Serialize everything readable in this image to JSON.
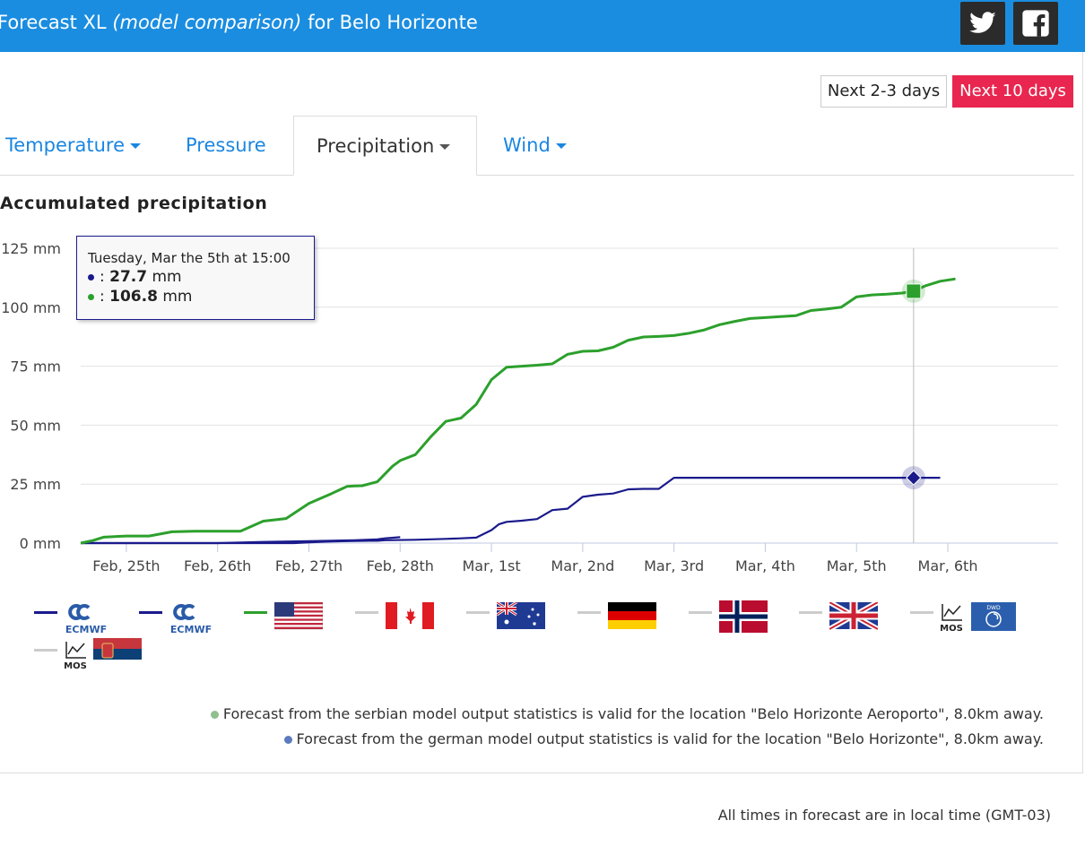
{
  "header": {
    "title_prefix": "Forecast XL",
    "title_italic": "(model comparison)",
    "title_suffix": "for Belo Horizonte",
    "twitter_icon": "twitter-icon",
    "facebook_icon": "facebook-icon"
  },
  "range_buttons": {
    "short_label": "Next 2-3 days",
    "long_label": "Next 10 days",
    "active_color": "#e8264f"
  },
  "tabs": [
    {
      "label": "Temperature",
      "has_dropdown": true,
      "active": false
    },
    {
      "label": "Pressure",
      "has_dropdown": false,
      "active": false
    },
    {
      "label": "Precipitation",
      "has_dropdown": true,
      "active": true
    },
    {
      "label": "Wind",
      "has_dropdown": true,
      "active": false
    }
  ],
  "tooltip": {
    "date": "Tuesday, Mar the 5th at 15:00",
    "rows": [
      {
        "sep": ":",
        "value": "27.7",
        "unit": "mm",
        "color": "#1a1a8c"
      },
      {
        "sep": ":",
        "value": "106.8",
        "unit": "mm",
        "color": "#2ca02c"
      }
    ]
  },
  "chart_data": {
    "type": "line",
    "title": "Accumulated precipitation",
    "ylim": [
      0,
      125
    ],
    "yticks": [
      "0 mm",
      "25 mm",
      "50 mm",
      "75 mm",
      "100 mm",
      "125 mm"
    ],
    "ytick_values": [
      0,
      25,
      50,
      75,
      100,
      125
    ],
    "x_unit": "hours since Feb 24th 12:00",
    "xlim": [
      0,
      257
    ],
    "xticks": [
      "Feb, 25th",
      "Feb, 26th",
      "Feb, 27th",
      "Feb, 28th",
      "Mar, 1st",
      "Mar, 2nd",
      "Mar, 3rd",
      "Mar, 4th",
      "Mar, 5th",
      "Mar, 6th"
    ],
    "xtick_values": [
      12,
      36,
      60,
      84,
      108,
      132,
      156,
      180,
      204,
      228
    ],
    "grid": true,
    "crosshair_x": 219,
    "series": [
      {
        "color": "#1a1a8c",
        "marker": "diamond",
        "x": [
          0,
          6,
          12,
          24,
          36,
          48,
          56,
          64,
          72,
          76,
          78,
          80,
          88,
          92,
          96,
          100,
          104,
          108,
          110,
          112,
          116,
          120,
          124,
          128,
          132,
          136,
          140,
          144,
          148,
          152,
          156,
          160,
          168,
          180,
          192,
          204,
          216,
          219,
          226
        ],
        "y": [
          0,
          0,
          0,
          0,
          0,
          0,
          0,
          0.6,
          0.9,
          1,
          1,
          1.2,
          1.4,
          1.6,
          1.8,
          2,
          2.3,
          5.5,
          8,
          9,
          9.5,
          10.2,
          14,
          14.6,
          19.6,
          20.5,
          21,
          22.8,
          23,
          23,
          27.7,
          27.7,
          27.7,
          27.7,
          27.7,
          27.7,
          27.7,
          27.7,
          27.7
        ]
      },
      {
        "color": "#1a1a8c",
        "marker": "none",
        "x": [
          0,
          12,
          24,
          36,
          48,
          60,
          66,
          72,
          78,
          80,
          84
        ],
        "y": [
          0,
          0,
          0,
          0,
          0.5,
          0.8,
          1,
          1.2,
          1.6,
          2,
          2.5
        ]
      },
      {
        "color": "#2ca02c",
        "marker": "square",
        "x": [
          0,
          3,
          6,
          12,
          18,
          24,
          30,
          36,
          42,
          48,
          54,
          60,
          66,
          70,
          72,
          74,
          78,
          82,
          84,
          88,
          92,
          96,
          100,
          104,
          108,
          112,
          116,
          120,
          124,
          128,
          132,
          136,
          140,
          144,
          148,
          152,
          156,
          160,
          164,
          168,
          172,
          176,
          180,
          184,
          188,
          192,
          196,
          200,
          204,
          208,
          212,
          216,
          219,
          222,
          226,
          230
        ],
        "y": [
          0,
          1,
          2.5,
          3,
          3,
          4.8,
          5,
          5,
          5,
          9.3,
          10.4,
          16.8,
          21,
          24,
          24.2,
          24.3,
          26,
          32.6,
          35,
          37.5,
          45,
          51.6,
          53,
          58.8,
          69.3,
          74.6,
          75,
          75.4,
          76,
          80,
          81.3,
          81.5,
          83,
          86,
          87.4,
          87.6,
          88,
          89,
          90.4,
          92.6,
          94,
          95.2,
          95.6,
          96,
          96.4,
          98.6,
          99.2,
          100,
          104.4,
          105.2,
          105.5,
          106,
          106.8,
          109,
          111,
          112
        ]
      }
    ]
  },
  "legend": [
    {
      "color": "#1a1a8c",
      "icon": "ecmwf-logo-icon",
      "logo_text": "ECMWF"
    },
    {
      "color": "#1a1a8c",
      "icon": "ecmwf-logo-icon",
      "logo_text": "ECMWF"
    },
    {
      "color": "#2ca02c",
      "icon": "usa-flag-icon"
    },
    {
      "color": "#cccccc",
      "icon": "canada-flag-icon"
    },
    {
      "color": "#cccccc",
      "icon": "australia-flag-icon"
    },
    {
      "color": "#cccccc",
      "icon": "germany-flag-icon"
    },
    {
      "color": "#cccccc",
      "icon": "norway-flag-icon"
    },
    {
      "color": "#cccccc",
      "icon": "uk-flag-icon"
    },
    {
      "color": "#cccccc",
      "icon": "dwd-mos-icon",
      "mos_text": "MOS",
      "badge_text": "DWD"
    },
    {
      "color": "#cccccc",
      "icon": "serbia-mos-icon",
      "mos_text": "MOS"
    }
  ],
  "notes": [
    {
      "text": "Forecast from the serbian model output statistics is valid for the location \"Belo Horizonte Aeroporto\", 8.0km away.",
      "dot_color": "#8fbf8f"
    },
    {
      "text": "Forecast from the german model output statistics is valid for the location \"Belo Horizonte\", 8.0km away.",
      "dot_color": "#5b7bbf"
    }
  ],
  "footer": {
    "text": "All times in forecast are in local time (GMT-03)"
  }
}
